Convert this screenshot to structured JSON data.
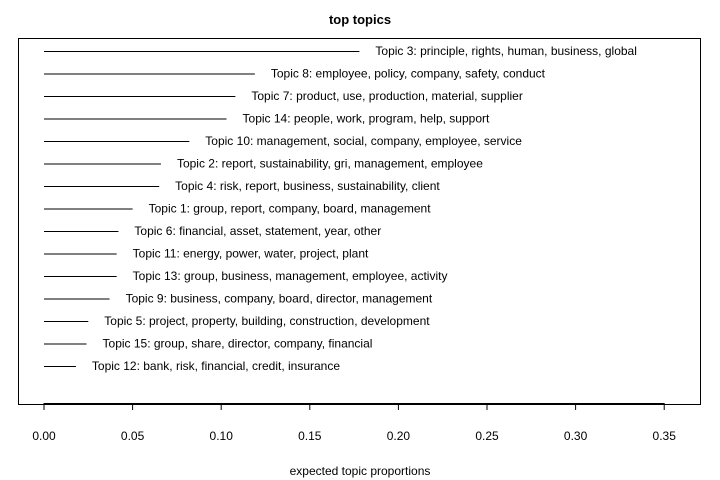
{
  "chart_data": {
    "type": "bar",
    "orientation": "horizontal",
    "title": "top topics",
    "xlabel": "expected topic proportions",
    "ylabel": "",
    "xlim": [
      0.0,
      0.36
    ],
    "x_ticks": [
      "0.00",
      "0.05",
      "0.10",
      "0.15",
      "0.20",
      "0.25",
      "0.30",
      "0.35"
    ],
    "x_tick_values": [
      0.0,
      0.05,
      0.1,
      0.15,
      0.2,
      0.25,
      0.3,
      0.35
    ],
    "grid": false,
    "legend": "none",
    "categories": [
      "Topic 3: principle, rights, human, business, global",
      "Topic 8: employee, policy, company, safety, conduct",
      "Topic 7: product, use, production, material, supplier",
      "Topic 14: people, work, program, help, support",
      "Topic 10: management, social, company, employee, service",
      "Topic 2: report, sustainability, gri, management, employee",
      "Topic 4: risk, report, business, sustainability, client",
      "Topic 1: group, report, company, board, management",
      "Topic 6: financial, asset, statement, year, other",
      "Topic 11: energy, power, water, project, plant",
      "Topic 13: group, business, management, employee, activity",
      "Topic 9: business, company, board, director, management",
      "Topic 5: project, property, building, construction, development",
      "Topic 15: group, share, director, company, financial",
      "Topic 12: bank, risk, financial, credit, insurance"
    ],
    "values": [
      0.178,
      0.119,
      0.108,
      0.103,
      0.082,
      0.066,
      0.065,
      0.05,
      0.042,
      0.041,
      0.041,
      0.037,
      0.025,
      0.024,
      0.018
    ]
  }
}
